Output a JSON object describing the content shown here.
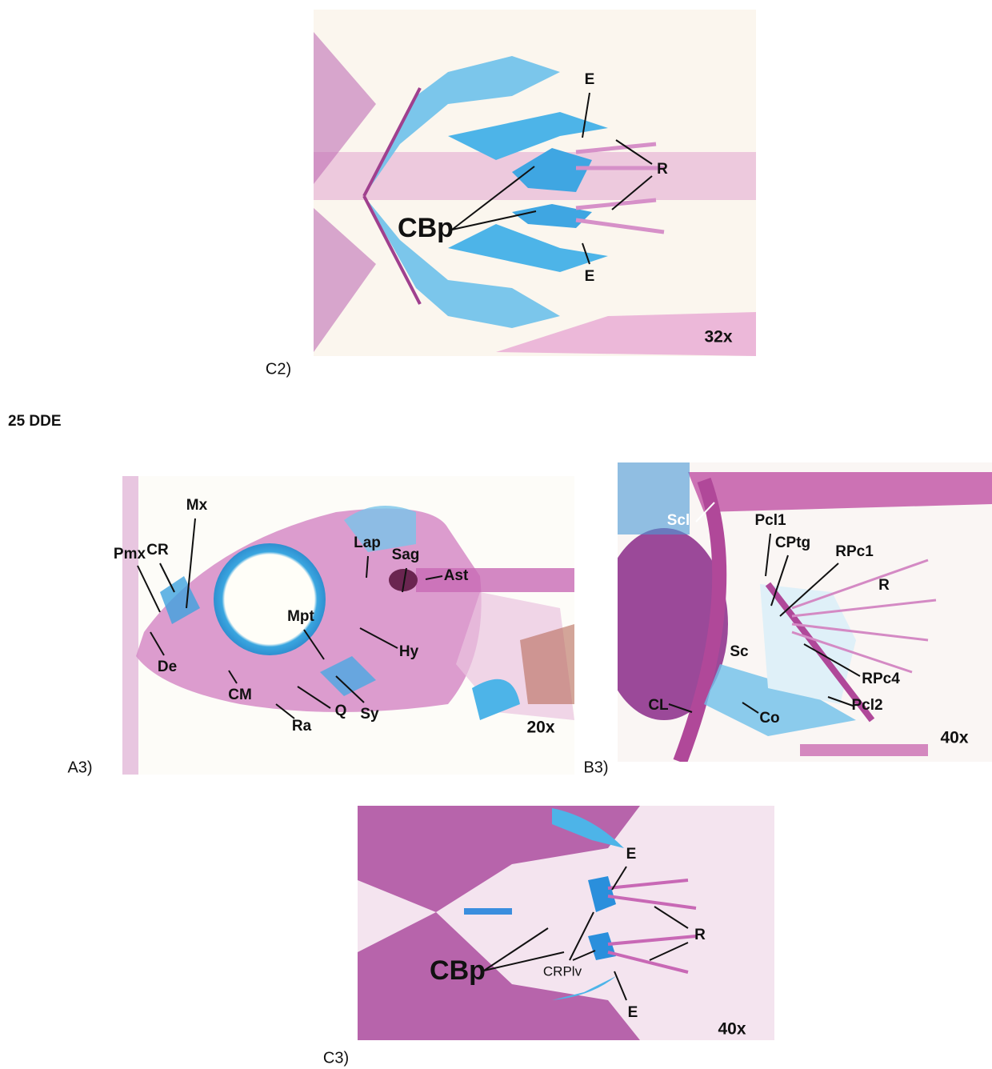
{
  "panels": [
    {
      "label": "C2)",
      "magnification": "32x",
      "annotations": [
        "E",
        "R",
        "CBp",
        "E"
      ]
    },
    {
      "label": "A3)",
      "magnification": "20x",
      "annotations": [
        "Mx",
        "CR",
        "Pmx",
        "Lap",
        "Sag",
        "Ast",
        "Mpt",
        "Hy",
        "De",
        "CM",
        "Q",
        "Sy",
        "Ra"
      ]
    },
    {
      "label": "B3)",
      "magnification": "40x",
      "annotations": [
        "Scl",
        "Pcl1",
        "CPtg",
        "RPc1",
        "R",
        "Sc",
        "RPc4",
        "Pcl2",
        "CL",
        "Co"
      ]
    },
    {
      "label": "C3)",
      "magnification": "40x",
      "annotations": [
        "E",
        "R",
        "CBp",
        "CRPlv",
        "E"
      ]
    }
  ],
  "section_heading": "25 DDE"
}
